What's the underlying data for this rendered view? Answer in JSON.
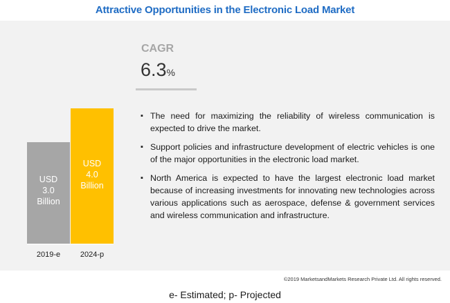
{
  "title": "Attractive Opportunities in the Electronic Load Market",
  "chart_data": {
    "type": "bar",
    "categories": [
      "2019-e",
      "2024-p"
    ],
    "values": [
      3.0,
      4.0
    ],
    "bar_labels": [
      [
        "USD",
        "3.0",
        "Billion"
      ],
      [
        "USD",
        "4.0",
        "Billion"
      ]
    ],
    "colors": [
      "#a6a6a6",
      "#ffc000"
    ],
    "unit": "USD Billion"
  },
  "cagr": {
    "label": "CAGR",
    "value": "6.3",
    "suffix": "%"
  },
  "bullets": [
    "The need for maximizing the reliability of wireless communication is expected to drive the market.",
    "Support policies and infrastructure development of electric vehicles is one of the major opportunities in the electronic load market.",
    "North America is expected to have the largest electronic load market because of increasing investments for innovating new technologies across various applications such as aerospace, defense & government services and wireless communication and  infrastructure."
  ],
  "bullet_symbol": "▪",
  "copyright": "©2019 MarketsandMarkets Research Private Ltd. All rights reserved.",
  "footnote": "e- Estimated; p- Projected"
}
